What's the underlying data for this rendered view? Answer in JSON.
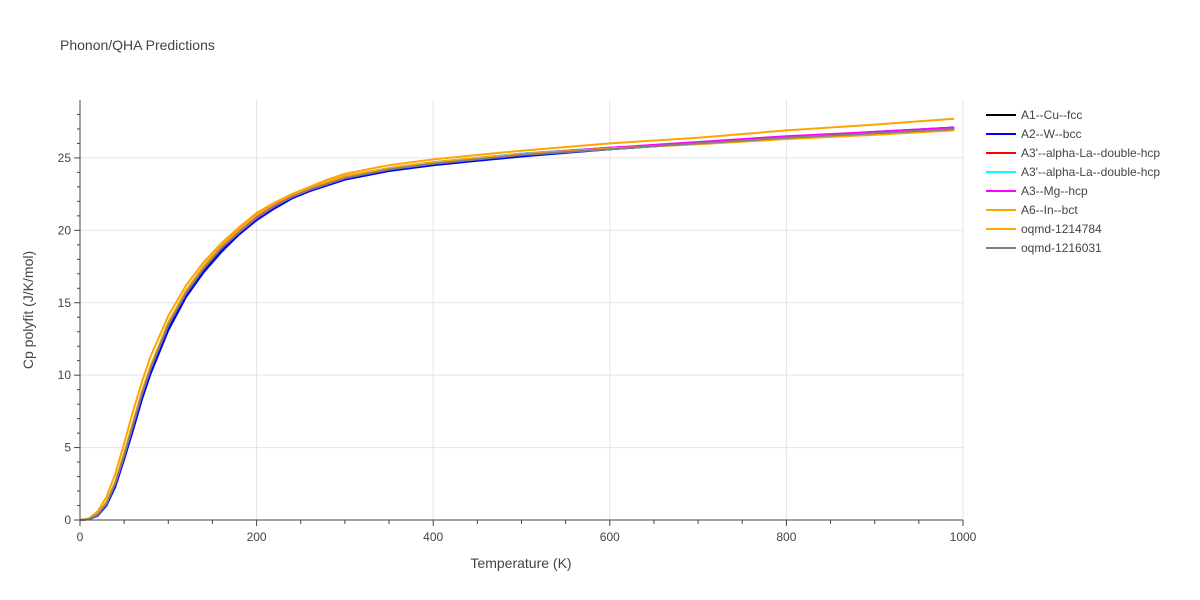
{
  "chart_data": {
    "type": "line",
    "title": "Phonon/QHA Predictions",
    "xlabel": "Temperature (K)",
    "ylabel": "Cp polyfit (J/K/mol)",
    "xlim": [
      0,
      1000
    ],
    "ylim": [
      0,
      29
    ],
    "x_ticks": [
      0,
      200,
      400,
      600,
      800,
      1000
    ],
    "y_ticks": [
      0,
      5,
      10,
      15,
      20,
      25
    ],
    "grid": true,
    "legend_position": "right",
    "x": [
      0,
      10,
      20,
      30,
      40,
      50,
      60,
      70,
      80,
      100,
      120,
      140,
      160,
      180,
      200,
      220,
      240,
      260,
      280,
      300,
      350,
      400,
      450,
      500,
      600,
      700,
      800,
      900,
      990
    ],
    "series": [
      {
        "name": "A1--Cu--fcc",
        "color": "#000000",
        "values": [
          0,
          0.05,
          0.35,
          1.1,
          2.5,
          4.4,
          6.5,
          8.6,
          10.4,
          13.4,
          15.6,
          17.3,
          18.7,
          19.8,
          20.8,
          21.6,
          22.3,
          22.8,
          23.2,
          23.6,
          24.2,
          24.6,
          24.9,
          25.2,
          25.6,
          26.0,
          26.4,
          26.7,
          27.0
        ]
      },
      {
        "name": "A2--W--bcc",
        "color": "#0000ff",
        "values": [
          0,
          0.04,
          0.3,
          1.0,
          2.3,
          4.2,
          6.2,
          8.3,
          10.1,
          13.1,
          15.4,
          17.1,
          18.5,
          19.7,
          20.7,
          21.5,
          22.2,
          22.7,
          23.1,
          23.5,
          24.1,
          24.5,
          24.8,
          25.1,
          25.6,
          26.0,
          26.4,
          26.8,
          27.1
        ]
      },
      {
        "name": "A3'--alpha-La--double-hcp",
        "color": "#ff0000",
        "values": [
          0,
          0.06,
          0.4,
          1.2,
          2.6,
          4.6,
          6.7,
          8.8,
          10.6,
          13.6,
          15.8,
          17.5,
          18.9,
          20.0,
          21.0,
          21.8,
          22.4,
          22.9,
          23.3,
          23.7,
          24.3,
          24.7,
          25.0,
          25.3,
          25.7,
          26.0,
          26.4,
          26.7,
          27.0
        ]
      },
      {
        "name": "A3'--alpha-La--double-hcp",
        "color": "#00ffff",
        "values": [
          0,
          0.06,
          0.4,
          1.2,
          2.6,
          4.6,
          6.7,
          8.8,
          10.6,
          13.6,
          15.8,
          17.5,
          18.9,
          20.0,
          21.0,
          21.8,
          22.4,
          22.9,
          23.3,
          23.7,
          24.3,
          24.7,
          25.0,
          25.3,
          25.7,
          26.0,
          26.4,
          26.7,
          27.0
        ]
      },
      {
        "name": "A3--Mg--hcp",
        "color": "#ff00ff",
        "values": [
          0,
          0.05,
          0.38,
          1.15,
          2.55,
          4.5,
          6.6,
          8.7,
          10.5,
          13.5,
          15.7,
          17.4,
          18.8,
          19.9,
          20.9,
          21.7,
          22.35,
          22.85,
          23.25,
          23.65,
          24.25,
          24.65,
          24.95,
          25.25,
          25.7,
          26.1,
          26.5,
          26.8,
          27.1
        ]
      },
      {
        "name": "A6--In--bct",
        "color": "#ffa500",
        "values": [
          0,
          0.06,
          0.42,
          1.25,
          2.65,
          4.65,
          6.75,
          8.85,
          10.65,
          13.65,
          15.85,
          17.55,
          18.95,
          20.05,
          21.05,
          21.85,
          22.45,
          22.95,
          23.35,
          23.75,
          24.3,
          24.7,
          25.0,
          25.25,
          25.65,
          25.95,
          26.3,
          26.6,
          26.9
        ]
      },
      {
        "name": "oqmd-1214784",
        "color": "#ffa500",
        "values": [
          0,
          0.1,
          0.6,
          1.6,
          3.2,
          5.3,
          7.5,
          9.5,
          11.3,
          14.1,
          16.2,
          17.8,
          19.1,
          20.2,
          21.2,
          21.9,
          22.5,
          23.0,
          23.5,
          23.9,
          24.5,
          24.9,
          25.2,
          25.5,
          26.0,
          26.4,
          26.9,
          27.3,
          27.7
        ]
      },
      {
        "name": "oqmd-1216031",
        "color": "#808080",
        "values": [
          0,
          0.05,
          0.36,
          1.12,
          2.52,
          4.45,
          6.55,
          8.65,
          10.45,
          13.45,
          15.65,
          17.35,
          18.75,
          19.85,
          20.85,
          21.65,
          22.3,
          22.8,
          23.2,
          23.6,
          24.2,
          24.6,
          24.9,
          25.2,
          25.6,
          26.0,
          26.4,
          26.7,
          27.0
        ]
      }
    ]
  }
}
